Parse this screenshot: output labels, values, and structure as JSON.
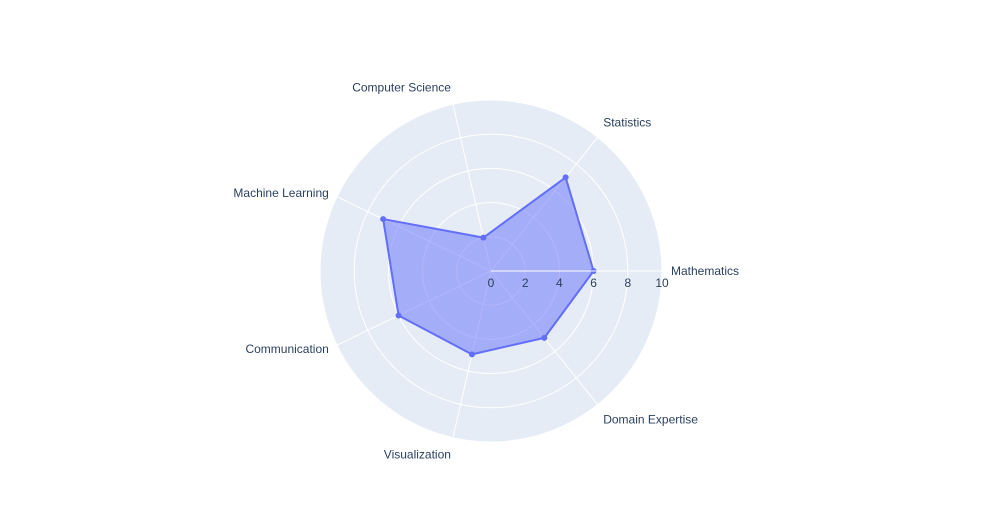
{
  "chart_data": {
    "type": "radar",
    "categories": [
      "Mathematics",
      "Statistics",
      "Computer Science",
      "Machine Learning",
      "Communication",
      "Visualization",
      "Domain Expertise"
    ],
    "series": [
      {
        "values": [
          6,
          7,
          2,
          7,
          6,
          5,
          5
        ]
      }
    ],
    "radial_range": [
      0,
      10
    ],
    "radial_ticks": [
      "0",
      "2",
      "4",
      "6",
      "8",
      "10"
    ],
    "grid": true,
    "colors": {
      "polar_background": "#e5ecf6",
      "grid": "#ffffff",
      "series_line": "#636efa",
      "series_fill": "#636efa",
      "text": "#2a3f5f"
    }
  }
}
